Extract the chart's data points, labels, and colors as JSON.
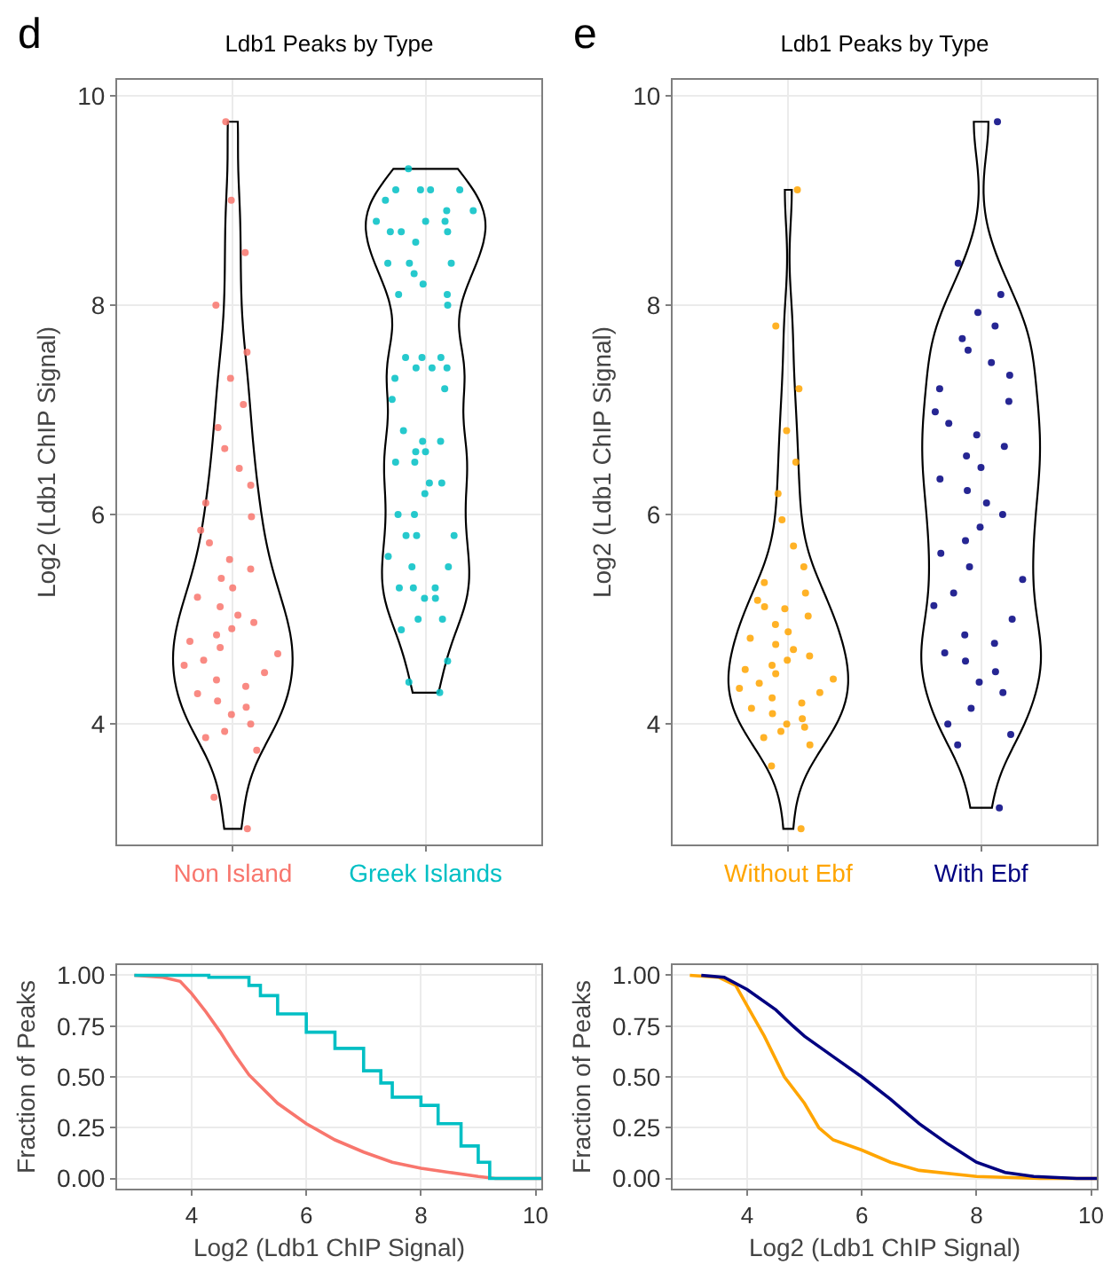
{
  "chart_data": [
    {
      "type": "scatter",
      "title": "Ldb1 Peaks by Type",
      "ylabel": "Log2 (Ldb1 ChIP Signal)",
      "annotations": [
        "d"
      ],
      "categories": [
        "Non Island",
        "Greek Islands"
      ],
      "ylim": [
        2.85,
        10.15
      ],
      "yticks": [
        4,
        6,
        8,
        10
      ],
      "grid": true,
      "marker": "circle",
      "series": [
        {
          "color": "#f8766d",
          "x": [
            "Non Island",
            "Non Island",
            "Non Island",
            "Non Island",
            "Non Island",
            "Non Island",
            "Non Island",
            "Non Island",
            "Non Island",
            "Non Island",
            "Non Island",
            "Non Island",
            "Non Island",
            "Non Island",
            "Non Island",
            "Non Island",
            "Non Island",
            "Non Island",
            "Non Island",
            "Non Island",
            "Non Island",
            "Non Island",
            "Non Island",
            "Non Island",
            "Non Island",
            "Non Island",
            "Non Island",
            "Non Island",
            "Non Island",
            "Non Island",
            "Non Island",
            "Non Island",
            "Non Island",
            "Non Island",
            "Non Island",
            "Non Island",
            "Non Island",
            "Non Island",
            "Non Island",
            "Non Island",
            "Non Island",
            "Non Island",
            "Non Island"
          ],
          "values": [
            3.0,
            3.3,
            3.75,
            3.87,
            3.93,
            4.0,
            4.09,
            4.16,
            4.22,
            4.29,
            4.36,
            4.42,
            4.49,
            4.56,
            4.61,
            4.67,
            4.73,
            4.79,
            4.85,
            4.91,
            4.97,
            5.04,
            5.12,
            5.21,
            5.3,
            5.39,
            5.48,
            5.57,
            5.73,
            5.85,
            5.98,
            6.11,
            6.28,
            6.44,
            6.63,
            6.83,
            7.05,
            7.3,
            7.55,
            8.0,
            8.5,
            9.0,
            9.75
          ]
        },
        {
          "color": "#00bfc4",
          "x": [
            "Greek Islands",
            "Greek Islands",
            "Greek Islands",
            "Greek Islands",
            "Greek Islands",
            "Greek Islands",
            "Greek Islands",
            "Greek Islands",
            "Greek Islands",
            "Greek Islands",
            "Greek Islands",
            "Greek Islands",
            "Greek Islands",
            "Greek Islands",
            "Greek Islands",
            "Greek Islands",
            "Greek Islands",
            "Greek Islands",
            "Greek Islands",
            "Greek Islands",
            "Greek Islands",
            "Greek Islands",
            "Greek Islands",
            "Greek Islands",
            "Greek Islands",
            "Greek Islands",
            "Greek Islands",
            "Greek Islands",
            "Greek Islands",
            "Greek Islands",
            "Greek Islands",
            "Greek Islands",
            "Greek Islands",
            "Greek Islands",
            "Greek Islands",
            "Greek Islands",
            "Greek Islands",
            "Greek Islands",
            "Greek Islands",
            "Greek Islands",
            "Greek Islands",
            "Greek Islands",
            "Greek Islands",
            "Greek Islands",
            "Greek Islands",
            "Greek Islands",
            "Greek Islands",
            "Greek Islands",
            "Greek Islands",
            "Greek Islands",
            "Greek Islands",
            "Greek Islands",
            "Greek Islands",
            "Greek Islands",
            "Greek Islands",
            "Greek Islands",
            "Greek Islands",
            "Greek Islands",
            "Greek Islands",
            "Greek Islands",
            "Greek Islands"
          ],
          "values": [
            9.3,
            9.1,
            9.1,
            9.1,
            8.9,
            9.1,
            9.0,
            8.9,
            8.8,
            8.8,
            8.8,
            8.7,
            8.7,
            8.7,
            8.6,
            8.4,
            8.4,
            8.4,
            8.3,
            8.2,
            8.1,
            8.1,
            8.0,
            7.5,
            7.5,
            7.5,
            7.4,
            7.4,
            7.4,
            7.3,
            7.2,
            7.1,
            6.8,
            6.7,
            6.7,
            6.6,
            6.6,
            6.5,
            6.5,
            6.3,
            6.3,
            6.2,
            6.0,
            6.0,
            5.8,
            5.8,
            5.8,
            5.6,
            5.5,
            5.5,
            5.3,
            5.3,
            5.3,
            5.2,
            5.2,
            5.0,
            5.0,
            4.9,
            4.6,
            4.4,
            4.3
          ]
        }
      ]
    },
    {
      "type": "scatter",
      "title": "Ldb1 Peaks by Type",
      "ylabel": "Log2 (Ldb1 ChIP Signal)",
      "annotations": [
        "e"
      ],
      "categories": [
        "Without Ebf",
        "With Ebf"
      ],
      "ylim": [
        2.85,
        10.15
      ],
      "yticks": [
        4,
        6,
        8,
        10
      ],
      "grid": true,
      "marker": "circle",
      "series": [
        {
          "color": "#ffa500",
          "x": [
            "Without Ebf",
            "Without Ebf",
            "Without Ebf",
            "Without Ebf",
            "Without Ebf",
            "Without Ebf",
            "Without Ebf",
            "Without Ebf",
            "Without Ebf",
            "Without Ebf",
            "Without Ebf",
            "Without Ebf",
            "Without Ebf",
            "Without Ebf",
            "Without Ebf",
            "Without Ebf",
            "Without Ebf",
            "Without Ebf",
            "Without Ebf",
            "Without Ebf",
            "Without Ebf",
            "Without Ebf",
            "Without Ebf",
            "Without Ebf",
            "Without Ebf",
            "Without Ebf",
            "Without Ebf",
            "Without Ebf",
            "Without Ebf",
            "Without Ebf",
            "Without Ebf",
            "Without Ebf",
            "Without Ebf",
            "Without Ebf",
            "Without Ebf",
            "Without Ebf",
            "Without Ebf",
            "Without Ebf",
            "Without Ebf",
            "Without Ebf",
            "Without Ebf"
          ],
          "values": [
            3.0,
            3.6,
            3.8,
            3.87,
            3.93,
            3.97,
            4.0,
            4.05,
            4.1,
            4.15,
            4.2,
            4.25,
            4.3,
            4.34,
            4.39,
            4.43,
            4.48,
            4.52,
            4.56,
            4.61,
            4.65,
            4.71,
            4.76,
            4.82,
            4.88,
            4.95,
            5.03,
            5.1,
            5.12,
            5.18,
            5.25,
            5.35,
            5.5,
            5.7,
            5.95,
            6.2,
            6.5,
            6.8,
            7.2,
            7.8,
            9.1
          ]
        },
        {
          "color": "#000080",
          "x": [
            "With Ebf",
            "With Ebf",
            "With Ebf",
            "With Ebf",
            "With Ebf",
            "With Ebf",
            "With Ebf",
            "With Ebf",
            "With Ebf",
            "With Ebf",
            "With Ebf",
            "With Ebf",
            "With Ebf",
            "With Ebf",
            "With Ebf",
            "With Ebf",
            "With Ebf",
            "With Ebf",
            "With Ebf",
            "With Ebf",
            "With Ebf",
            "With Ebf",
            "With Ebf",
            "With Ebf",
            "With Ebf",
            "With Ebf",
            "With Ebf",
            "With Ebf",
            "With Ebf",
            "With Ebf",
            "With Ebf",
            "With Ebf",
            "With Ebf",
            "With Ebf",
            "With Ebf",
            "With Ebf",
            "With Ebf",
            "With Ebf",
            "With Ebf",
            "With Ebf",
            "With Ebf"
          ],
          "values": [
            3.2,
            3.8,
            3.9,
            4.0,
            4.15,
            4.3,
            4.4,
            4.5,
            4.6,
            4.68,
            4.77,
            4.85,
            5.0,
            5.13,
            5.25,
            5.38,
            5.5,
            5.63,
            5.75,
            5.88,
            6.0,
            6.11,
            6.23,
            6.34,
            6.45,
            6.56,
            6.65,
            6.76,
            6.87,
            6.98,
            7.08,
            7.2,
            7.33,
            7.45,
            7.57,
            7.68,
            7.8,
            7.93,
            8.1,
            8.4,
            9.75
          ]
        }
      ]
    },
    {
      "type": "line",
      "xlabel": "Log2 (Ldb1 ChIP Signal)",
      "ylabel": "Fraction of Peaks",
      "xlim": [
        2.7,
        10.1
      ],
      "xticks": [
        4,
        6,
        8,
        10
      ],
      "ylim": [
        -0.05,
        1.05
      ],
      "yticks": [
        {
          "value": 0,
          "label": "0.00"
        },
        {
          "value": 0.25,
          "label": "0.25"
        },
        {
          "value": 0.5,
          "label": "0.50"
        },
        {
          "value": 0.75,
          "label": "0.75"
        },
        {
          "value": 1,
          "label": "1.00"
        }
      ],
      "grid": true,
      "marker": "none",
      "series": [
        {
          "color": "#f8766d",
          "x": [
            3.0,
            3.5,
            3.8,
            4.0,
            4.25,
            4.5,
            4.75,
            5.0,
            5.5,
            6.0,
            6.5,
            7.0,
            7.5,
            8.0,
            8.5,
            9.0,
            9.3,
            10.1
          ],
          "values": [
            1.0,
            0.99,
            0.97,
            0.91,
            0.82,
            0.72,
            0.61,
            0.51,
            0.37,
            0.27,
            0.19,
            0.13,
            0.08,
            0.05,
            0.03,
            0.01,
            0.0,
            0.0
          ]
        },
        {
          "type": "step",
          "color": "#00bfc4",
          "x": [
            3.0,
            4.3,
            5.0,
            5.2,
            5.5,
            6.0,
            6.5,
            7.0,
            7.3,
            7.5,
            8.0,
            8.3,
            8.7,
            9.0,
            9.2,
            10.1
          ],
          "values": [
            1.0,
            0.99,
            0.95,
            0.9,
            0.81,
            0.72,
            0.64,
            0.53,
            0.47,
            0.4,
            0.36,
            0.27,
            0.16,
            0.08,
            0.0,
            0.0
          ]
        }
      ]
    },
    {
      "type": "line",
      "xlabel": "Log2 (Ldb1 ChIP Signal)",
      "ylabel": "Fraction of Peaks",
      "xlim": [
        2.7,
        10.1
      ],
      "xticks": [
        4,
        6,
        8,
        10
      ],
      "ylim": [
        -0.05,
        1.05
      ],
      "yticks": [
        {
          "value": 0,
          "label": "0.00"
        },
        {
          "value": 0.25,
          "label": "0.25"
        },
        {
          "value": 0.5,
          "label": "0.50"
        },
        {
          "value": 0.75,
          "label": "0.75"
        },
        {
          "value": 1,
          "label": "1.00"
        }
      ],
      "grid": true,
      "marker": "none",
      "series": [
        {
          "color": "#ffa500",
          "x": [
            3.0,
            3.5,
            3.8,
            4.0,
            4.3,
            4.65,
            5.0,
            5.25,
            5.5,
            6.0,
            6.5,
            7.0,
            8.0,
            9.1,
            10.1
          ],
          "values": [
            1.0,
            0.99,
            0.95,
            0.85,
            0.7,
            0.5,
            0.37,
            0.25,
            0.19,
            0.14,
            0.08,
            0.04,
            0.01,
            0.0,
            0.0
          ]
        },
        {
          "color": "#000080",
          "x": [
            3.2,
            3.6,
            4.0,
            4.5,
            4.8,
            5.0,
            5.5,
            6.0,
            6.5,
            7.0,
            7.5,
            8.0,
            8.5,
            9.0,
            9.75,
            10.1
          ],
          "values": [
            1.0,
            0.99,
            0.93,
            0.83,
            0.75,
            0.7,
            0.6,
            0.5,
            0.39,
            0.27,
            0.17,
            0.08,
            0.03,
            0.01,
            0.0,
            0.0
          ]
        }
      ]
    }
  ]
}
